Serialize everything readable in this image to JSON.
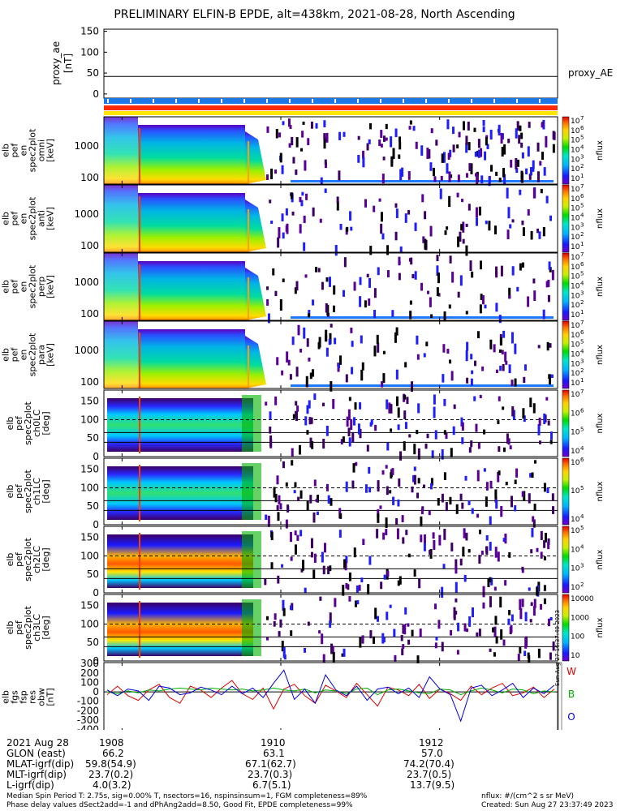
{
  "title": "PRELIMINARY ELFIN-B EPDE, alt=438km, 2021-08-28, North Ascending",
  "chart_data": [
    {
      "type": "line",
      "name_label": "proxy_ae",
      "units": "[nT]",
      "legend": "proxy_AE",
      "yticks": [
        "150",
        "100",
        "50",
        "0"
      ],
      "ylim": [
        -10,
        155
      ],
      "value": 42
    },
    {
      "type": "heatmap",
      "ylabel": [
        "elb",
        "pef",
        "en",
        "spec2plot",
        "omni",
        "[keV]"
      ],
      "yticks": [
        "1000",
        "100"
      ],
      "cbar_label": "nflux",
      "cbar_ticks": [
        "10",
        "10",
        "10",
        "10",
        "10",
        "10",
        "10"
      ],
      "cbar_exps": [
        "7",
        "6",
        "5",
        "4",
        "3",
        "2",
        "1"
      ]
    },
    {
      "type": "heatmap",
      "ylabel": [
        "elb",
        "pef",
        "en",
        "spec2plot",
        "anti",
        "[keV]"
      ],
      "yticks": [
        "1000",
        "100"
      ],
      "cbar_label": "nflux",
      "cbar_ticks": [
        "10",
        "10",
        "10",
        "10",
        "10",
        "10",
        "10"
      ],
      "cbar_exps": [
        "7",
        "6",
        "5",
        "4",
        "3",
        "2",
        "1"
      ]
    },
    {
      "type": "heatmap",
      "ylabel": [
        "elb",
        "pef",
        "en",
        "spec2plot",
        "perp",
        "[keV]"
      ],
      "yticks": [
        "1000",
        "100"
      ],
      "cbar_label": "nflux",
      "cbar_ticks": [
        "10",
        "10",
        "10",
        "10",
        "10",
        "10",
        "10"
      ],
      "cbar_exps": [
        "7",
        "6",
        "5",
        "4",
        "3",
        "2",
        "1"
      ]
    },
    {
      "type": "heatmap",
      "ylabel": [
        "elb",
        "pef",
        "en",
        "spec2plot",
        "para",
        "[keV]"
      ],
      "yticks": [
        "1000",
        "100"
      ],
      "cbar_label": "nflux",
      "cbar_ticks": [
        "10",
        "10",
        "10",
        "10",
        "10",
        "10",
        "10"
      ],
      "cbar_exps": [
        "7",
        "6",
        "5",
        "4",
        "3",
        "2",
        "1"
      ]
    },
    {
      "type": "heatmap",
      "ylabel": [
        "elb",
        "pef",
        "spec2plot",
        "ch0LC",
        "[deg]"
      ],
      "yticks": [
        "150",
        "100",
        "50",
        "0"
      ],
      "cbar_label": "nflux",
      "cbar_ticks": [
        "10",
        "10",
        "10",
        "10"
      ],
      "cbar_exps": [
        "7",
        "6",
        "5",
        "4"
      ]
    },
    {
      "type": "heatmap",
      "ylabel": [
        "elb",
        "pef",
        "spec2plot",
        "ch1LC",
        "[deg]"
      ],
      "yticks": [
        "150",
        "100",
        "50",
        "0"
      ],
      "cbar_label": "nflux",
      "cbar_ticks": [
        "10",
        "10",
        "10"
      ],
      "cbar_exps": [
        "6",
        "5",
        "4"
      ]
    },
    {
      "type": "heatmap",
      "ylabel": [
        "elb",
        "pef",
        "spec2plot",
        "ch2LC",
        "[deg]"
      ],
      "yticks": [
        "150",
        "100",
        "50",
        "0"
      ],
      "cbar_label": "nflux",
      "cbar_ticks": [
        "10",
        "10",
        "10",
        "10"
      ],
      "cbar_exps": [
        "5",
        "4",
        "3",
        "2"
      ]
    },
    {
      "type": "heatmap",
      "ylabel": [
        "elb",
        "pef",
        "spec2plot",
        "ch3LC",
        "[deg]"
      ],
      "yticks": [
        "150",
        "100",
        "50",
        "0"
      ],
      "cbar_label": "nflux",
      "cbar_ticks": [
        "10000",
        "1000",
        "100",
        "10"
      ]
    },
    {
      "type": "line",
      "ylabel": [
        "elb",
        "fgs",
        "fsp",
        "res",
        "obw",
        "[nT]"
      ],
      "yticks": [
        "300",
        "200",
        "100",
        "0",
        "-100",
        "-200",
        "-300",
        "-400"
      ],
      "ylim": [
        -420,
        310
      ],
      "series": [
        {
          "name": "W",
          "color": "#e00000",
          "values": [
            -30,
            60,
            -40,
            -90,
            20,
            80,
            -60,
            -120,
            60,
            20,
            -60,
            40,
            120,
            -20,
            -80,
            40,
            -180,
            30,
            80,
            -40,
            -120,
            70,
            10,
            -60,
            90,
            -30,
            -150,
            50,
            20,
            -40,
            80,
            -70,
            30,
            -20,
            -90,
            60,
            -30,
            40,
            90,
            -40,
            -10,
            50,
            -60,
            30
          ]
        },
        {
          "name": "B",
          "color": "#00b000",
          "values": [
            0,
            -20,
            10,
            -10,
            20,
            10,
            30,
            40,
            30,
            20,
            40,
            30,
            20,
            30,
            10,
            20,
            40,
            20,
            10,
            30,
            -10,
            20,
            10,
            -20,
            30,
            40,
            -30,
            20,
            30,
            10,
            -10,
            -20,
            30,
            20,
            -30,
            10,
            40,
            20,
            -10,
            30,
            20,
            -20,
            10,
            0
          ]
        },
        {
          "name": "O",
          "color": "#0000e0",
          "values": [
            20,
            -40,
            30,
            10,
            -90,
            60,
            40,
            -30,
            -10,
            50,
            20,
            -30,
            60,
            -20,
            40,
            -60,
            90,
            230,
            -80,
            30,
            -120,
            180,
            20,
            -40,
            60,
            -90,
            30,
            50,
            -20,
            40,
            -60,
            160,
            30,
            -30,
            -310,
            40,
            70,
            -40,
            20,
            90,
            -60,
            40,
            -20,
            70
          ]
        }
      ]
    }
  ],
  "time_ticks": [
    "1908",
    "1910",
    "1912"
  ],
  "date_label": "2021 Aug 28",
  "ephemeris": [
    {
      "label": "GLON (east)",
      "v": [
        "66.2",
        "63.1",
        "57.0"
      ]
    },
    {
      "label": "MLAT-igrf(dip)",
      "v": [
        "59.8(54.9)",
        "67.1(62.7)",
        "74.2(70.4)"
      ]
    },
    {
      "label": "MLT-igrf(dip)",
      "v": [
        "23.7(0.2)",
        "23.7(0.3)",
        "23.7(0.5)"
      ]
    },
    {
      "label": "L-igrf(dip)",
      "v": [
        "4.0(3.2)",
        "6.7(5.1)",
        "13.7(9.5)"
      ]
    }
  ],
  "footer": {
    "line1": "Median Spin Period T: 2.75s, sig=0.00% T, nsectors=16, nspinsinsum=1, FGM completeness=89%",
    "line2": "Phase delay values dSect2add=-1 and dPhAng2add=8.50, Good Fit, EPDE completeness=99%",
    "units": "nflux: #/(cm^2 s sr MeV)",
    "created": "Created: Sun Aug 27 23:37:49 2023"
  },
  "side_stamp": "Sun Aug 27 16:37:49 2023",
  "colors": {
    "status_blue": "#1c78e6",
    "status_red": "#ff2a00",
    "status_yellow": "#ffe600"
  }
}
